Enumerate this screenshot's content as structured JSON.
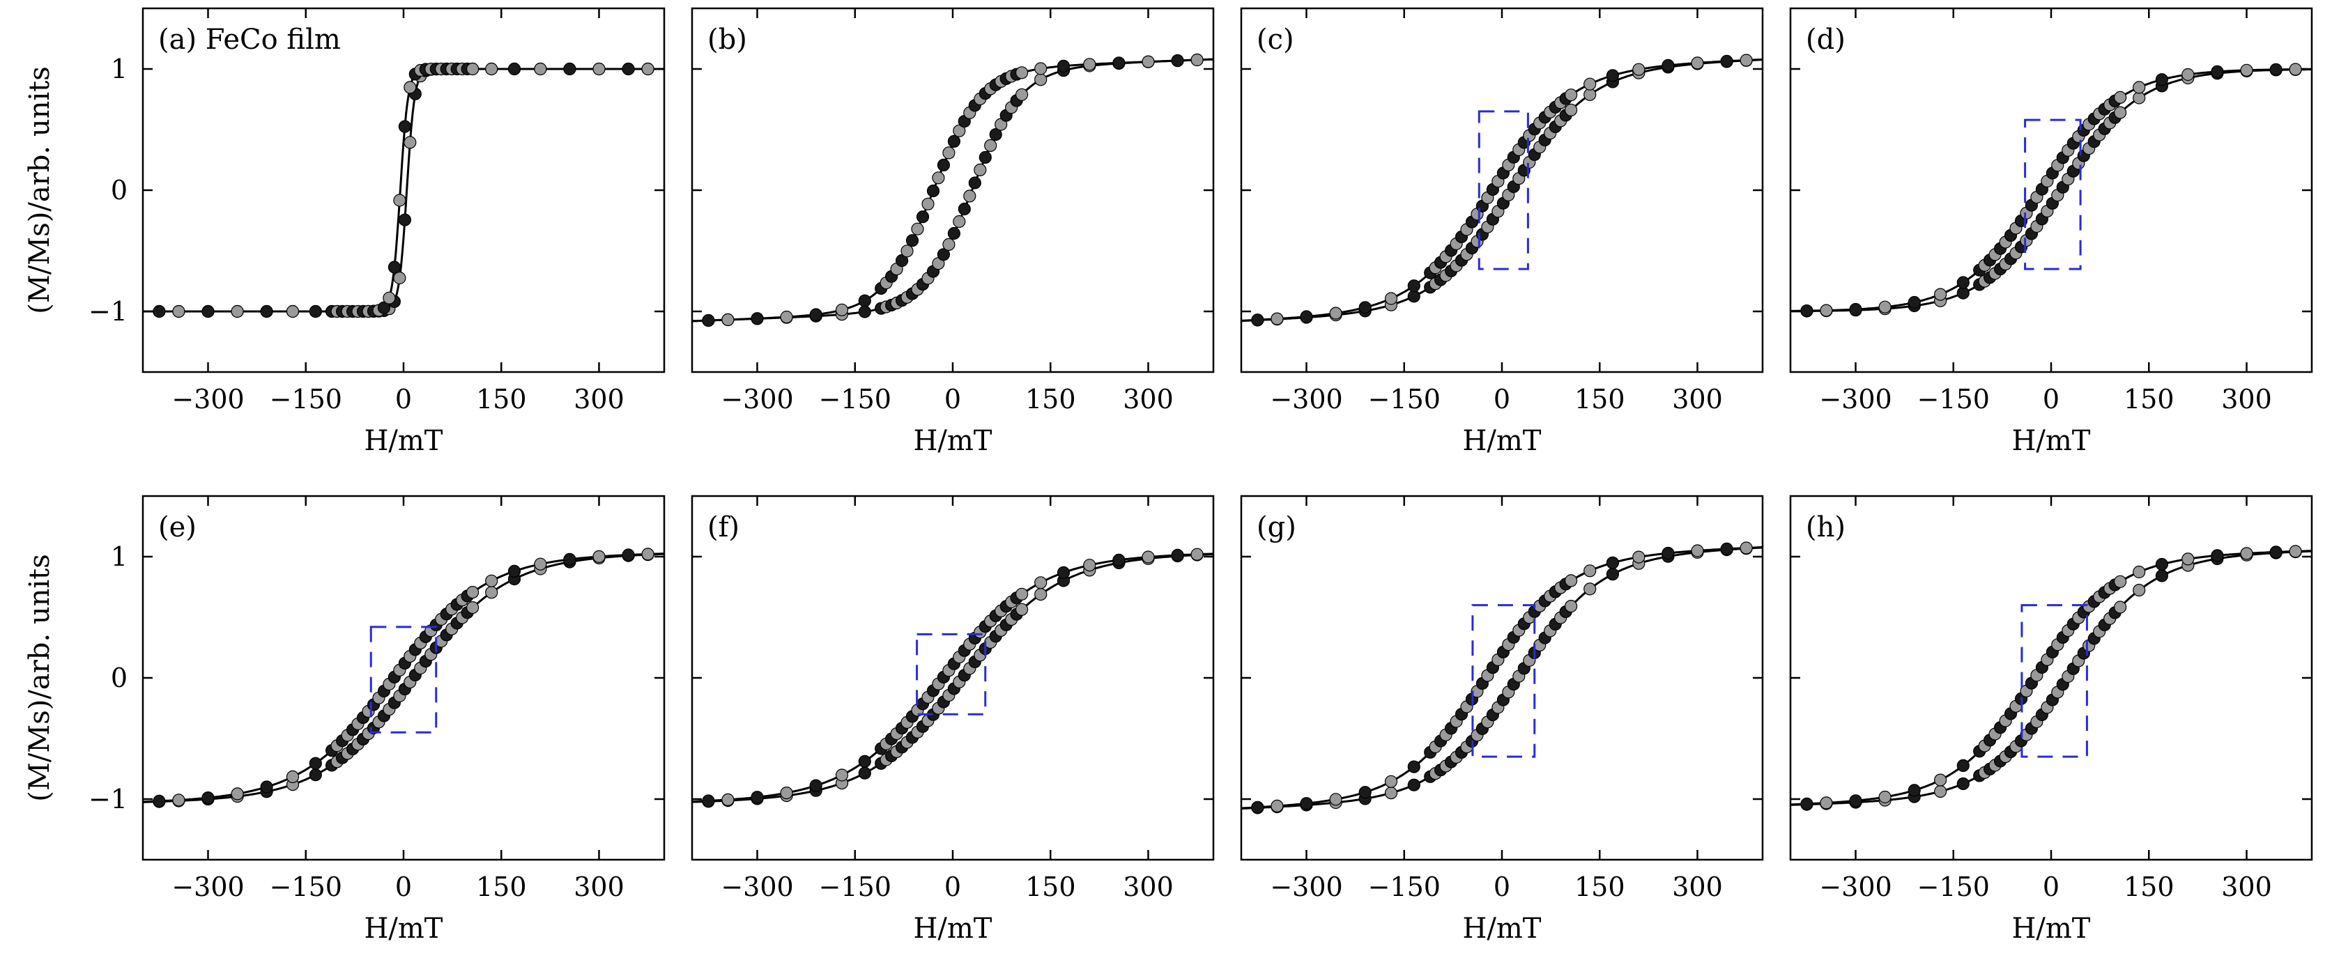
{
  "figure": {
    "xlabel": "H/mT",
    "ylabel": "(M/Ms)/arb. units",
    "xlim": [
      -400,
      400
    ],
    "ylim": [
      -1.5,
      1.5
    ],
    "xticks": [
      -300,
      -150,
      0,
      150,
      300
    ],
    "xtick_labels": [
      "−300",
      "−150",
      "0",
      "150",
      "300"
    ],
    "yticks": [
      1,
      0,
      -1
    ],
    "ytick_labels": [
      "1",
      "0",
      "−1"
    ],
    "colors": {
      "curve": "#000000",
      "marker": "#1a1a1a",
      "marker_highlight": "#9a9a9a",
      "box": "#2b2bd6"
    }
  },
  "chart_data": [
    {
      "type": "line",
      "label": "(a) FeCo film",
      "hc": 5,
      "width": 12,
      "mr": 0.85,
      "tilt": 0,
      "box": null
    },
    {
      "type": "line",
      "label": "(b)",
      "hc": 30,
      "width": 75,
      "mr": 0.6,
      "tilt": 0.08,
      "box": null
    },
    {
      "type": "line",
      "label": "(c)",
      "hc": 15,
      "width": 120,
      "mr": 0.25,
      "tilt": 0.08,
      "box": {
        "x0": -35,
        "x1": 40,
        "y0": -0.65,
        "y1": 0.65
      }
    },
    {
      "type": "line",
      "label": "(d)",
      "hc": 15,
      "width": 120,
      "mr": 0.55,
      "tilt": 0.0,
      "box": {
        "x0": -40,
        "x1": 45,
        "y0": -0.65,
        "y1": 0.58
      }
    },
    {
      "type": "line",
      "label": "(e)",
      "hc": 15,
      "width": 140,
      "mr": 0.2,
      "tilt": 0.03,
      "box": {
        "x0": -50,
        "x1": 50,
        "y0": -0.45,
        "y1": 0.42
      }
    },
    {
      "type": "line",
      "label": "(f)",
      "hc": 15,
      "width": 145,
      "mr": 0.1,
      "tilt": 0.03,
      "box": {
        "x0": -55,
        "x1": 50,
        "y0": -0.3,
        "y1": 0.36
      }
    },
    {
      "type": "line",
      "label": "(g)",
      "hc": 25,
      "width": 125,
      "mr": 0.55,
      "tilt": 0.08,
      "box": {
        "x0": -45,
        "x1": 50,
        "y0": -0.65,
        "y1": 0.6
      }
    },
    {
      "type": "line",
      "label": "(h)",
      "hc": 25,
      "width": 125,
      "mr": 0.55,
      "tilt": 0.05,
      "box": {
        "x0": -45,
        "x1": 55,
        "y0": -0.65,
        "y1": 0.6
      }
    }
  ]
}
